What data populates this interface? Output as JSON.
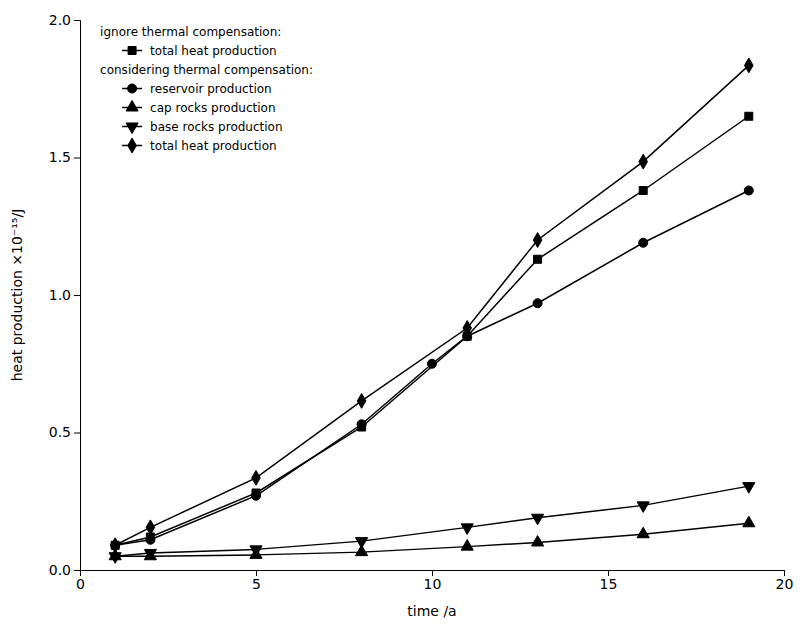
{
  "chart_data": {
    "type": "line",
    "xlabel": "time /a",
    "ylabel": "heat production ×10⁻¹⁵/J",
    "xlim": [
      0,
      20
    ],
    "ylim": [
      0,
      2.0
    ],
    "xticks": [
      0,
      5,
      10,
      15,
      20
    ],
    "yticks": [
      {
        "value": 0.0,
        "label": "0.0"
      },
      0.5,
      {
        "value": 1.0,
        "label": "1.0"
      },
      1.5,
      {
        "value": 2.0,
        "label": "2.0"
      }
    ],
    "color": "black",
    "grid": false,
    "legend": "upper left",
    "series": [
      {
        "name": "total heat production",
        "group": "ignore thermal compensation:",
        "marker": "square",
        "x": [
          1,
          2,
          5,
          8,
          11,
          13,
          16,
          19
        ],
        "values": [
          0.09,
          0.12,
          0.28,
          0.52,
          0.85,
          1.13,
          1.38,
          1.65
        ]
      },
      {
        "name": "reservoir production",
        "group": "considering thermal compensation:",
        "marker": "circle",
        "x": [
          1,
          2,
          5,
          8,
          10,
          11,
          13,
          16,
          19
        ],
        "values": [
          0.09,
          0.11,
          0.27,
          0.53,
          0.75,
          0.85,
          0.97,
          1.19,
          1.38
        ]
      },
      {
        "name": "cap rocks production",
        "group": "considering thermal compensation:",
        "marker": "triangle-up",
        "x": [
          1,
          2,
          5,
          8,
          11,
          13,
          16,
          19
        ],
        "values": [
          0.05,
          0.05,
          0.055,
          0.065,
          0.085,
          0.1,
          0.13,
          0.17
        ]
      },
      {
        "name": "base rocks production",
        "group": "considering thermal compensation:",
        "marker": "triangle-down",
        "x": [
          1,
          2,
          5,
          8,
          11,
          13,
          16,
          19
        ],
        "values": [
          0.05,
          0.062,
          0.075,
          0.105,
          0.155,
          0.19,
          0.235,
          0.305
        ]
      },
      {
        "name": "total heat production",
        "group": "considering thermal compensation:",
        "marker": "diamond",
        "x": [
          1,
          2,
          5,
          8,
          11,
          13,
          16,
          19
        ],
        "values": [
          0.09,
          0.155,
          0.335,
          0.615,
          0.88,
          1.2,
          1.485,
          1.835
        ]
      }
    ]
  }
}
